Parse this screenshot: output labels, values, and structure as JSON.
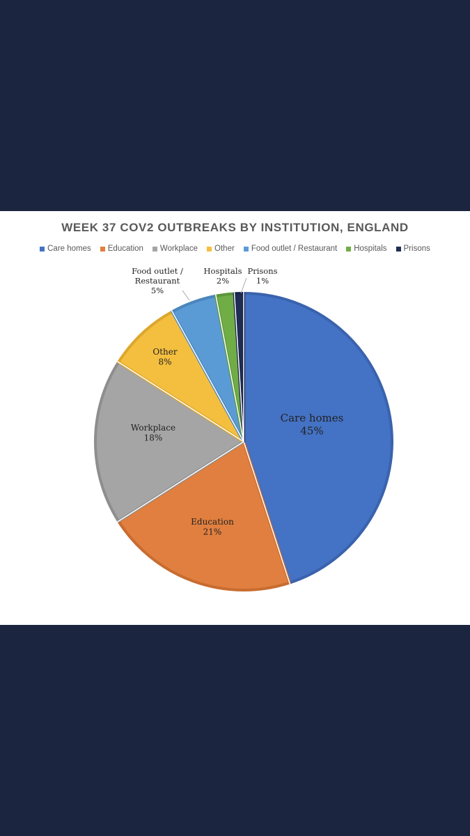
{
  "chart_data": {
    "type": "pie",
    "title": "WEEK 37 COV2 OUTBREAKS BY INSTITUTION, ENGLAND",
    "legend_position": "top",
    "slices": [
      {
        "name": "Care homes",
        "value": 45,
        "label": "45%",
        "color": "#4472c4",
        "border": "#3a63ad",
        "legend": "Care homes",
        "label_lines": [
          "Care homes"
        ]
      },
      {
        "name": "Education",
        "value": 21,
        "label": "21%",
        "color": "#e07f3f",
        "border": "#c86c30",
        "legend": "Education",
        "label_lines": [
          "Education"
        ]
      },
      {
        "name": "Workplace",
        "value": 18,
        "label": "18%",
        "color": "#a5a5a5",
        "border": "#8e8e8e",
        "legend": "Workplace",
        "label_lines": [
          "Workplace"
        ]
      },
      {
        "name": "Other",
        "value": 8,
        "label": "8%",
        "color": "#f4bf3f",
        "border": "#dca72c",
        "legend": "Other",
        "label_lines": [
          "Other"
        ]
      },
      {
        "name": "Food outlet / Restaurant",
        "value": 5,
        "label": "5%",
        "color": "#5b9bd5",
        "border": "#4a86bd",
        "legend": "Food outlet / Restaurant",
        "label_lines": [
          "Food outlet /",
          "Restaurant"
        ]
      },
      {
        "name": "Hospitals",
        "value": 2,
        "label": "2%",
        "color": "#70ad47",
        "border": "#5d963a",
        "legend": "Hospitals",
        "label_lines": [
          "Hospitals"
        ]
      },
      {
        "name": "Prisons",
        "value": 1,
        "label": "1%",
        "color": "#1f2d55",
        "border": "#18234a",
        "legend": "Prisons",
        "label_lines": [
          "Prisons"
        ]
      }
    ]
  }
}
